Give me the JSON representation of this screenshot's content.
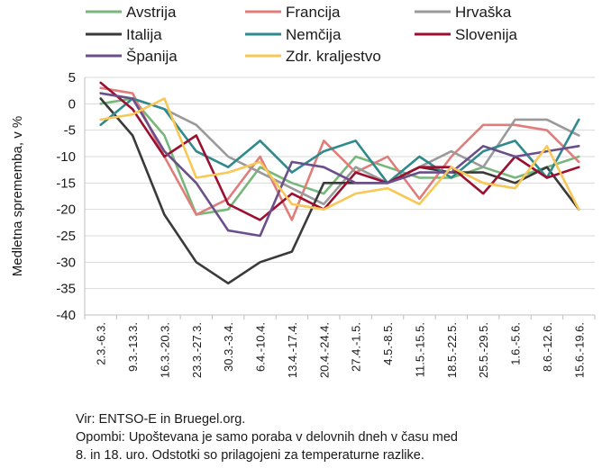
{
  "chart_data": {
    "type": "line",
    "title": "",
    "xlabel": "",
    "ylabel": "Medletna sprememba, v %",
    "ylim": [
      -40,
      5
    ],
    "yticks": [
      5,
      0,
      -5,
      -10,
      -15,
      -20,
      -25,
      -30,
      -35,
      -40
    ],
    "grid": true,
    "legend_position": "top",
    "categories": [
      "2.3.-6.3.",
      "9.3.-13.3.",
      "16.3.-20.3.",
      "23.3.-27.3.",
      "30.3.-3.4.",
      "6.4.-10.4.",
      "13.4.-17.4.",
      "20.4.-24.4.",
      "27.4.-1.5.",
      "4.5.-8.5.",
      "11.5.-15.5.",
      "18.5.-22.5.",
      "25.5.-29.5.",
      "1.6.-5.6.",
      "8.6.-12.6.",
      "15.6.-19.6."
    ],
    "series": [
      {
        "name": "Avstrija",
        "color": "#77b87a",
        "values": [
          0,
          1,
          -6,
          -21,
          -20,
          -12,
          -15,
          -17,
          -10,
          -12,
          -14,
          -14,
          -12,
          -14,
          -12,
          -10
        ]
      },
      {
        "name": "Francija",
        "color": "#e07d7a",
        "values": [
          3,
          2,
          -10,
          -21,
          -18,
          -10,
          -22,
          -7,
          -13,
          -10,
          -18,
          -10,
          -4,
          -4,
          -5,
          -11
        ]
      },
      {
        "name": "Hrvaška",
        "color": "#9a9a9a",
        "values": [
          2,
          1,
          -1,
          -4,
          -10,
          -13,
          -16,
          -19,
          -12,
          -15,
          -12,
          -9,
          -12,
          -3,
          -3,
          -6
        ]
      },
      {
        "name": "Italija",
        "color": "#3a3a3a",
        "values": [
          1,
          -6,
          -21,
          -30,
          -34,
          -30,
          -28,
          -15,
          -15,
          -15,
          -12,
          -13,
          -13,
          -15,
          -12,
          -20
        ]
      },
      {
        "name": "Nemčija",
        "color": "#2f8a8d",
        "values": [
          -4,
          1,
          -1,
          -9,
          -12,
          -7,
          -13,
          -9,
          -7,
          -15,
          -10,
          -14,
          -9,
          -7,
          -14,
          -3
        ]
      },
      {
        "name": "Slovenija",
        "color": "#9b1030",
        "values": [
          4,
          -1,
          -10,
          -6,
          -19,
          -22,
          -17,
          -20,
          -13,
          -15,
          -12,
          -12,
          -17,
          -10,
          -14,
          -12
        ]
      },
      {
        "name": "Španija",
        "color": "#6a4f8a",
        "values": [
          2,
          1,
          -9,
          -15,
          -24,
          -25,
          -11,
          -12,
          -15,
          -15,
          -13,
          -13,
          -8,
          -10,
          -9,
          -8
        ]
      },
      {
        "name": "Zdr. kraljestvo",
        "color": "#f8c755",
        "values": [
          -3,
          -2,
          1,
          -14,
          -13,
          -11,
          -19,
          -20,
          -17,
          -16,
          -19,
          -12,
          -15,
          -16,
          -8,
          -20
        ]
      }
    ]
  },
  "footer": {
    "source": "Vir: ENTSO-E in Bruegel.org.",
    "note_line1": "Opombi: Upoštevana je samo poraba v delovnih dneh v času med",
    "note_line2": "8. in 18. uro. Odstotki so prilagojeni za temperaturne razlike."
  }
}
